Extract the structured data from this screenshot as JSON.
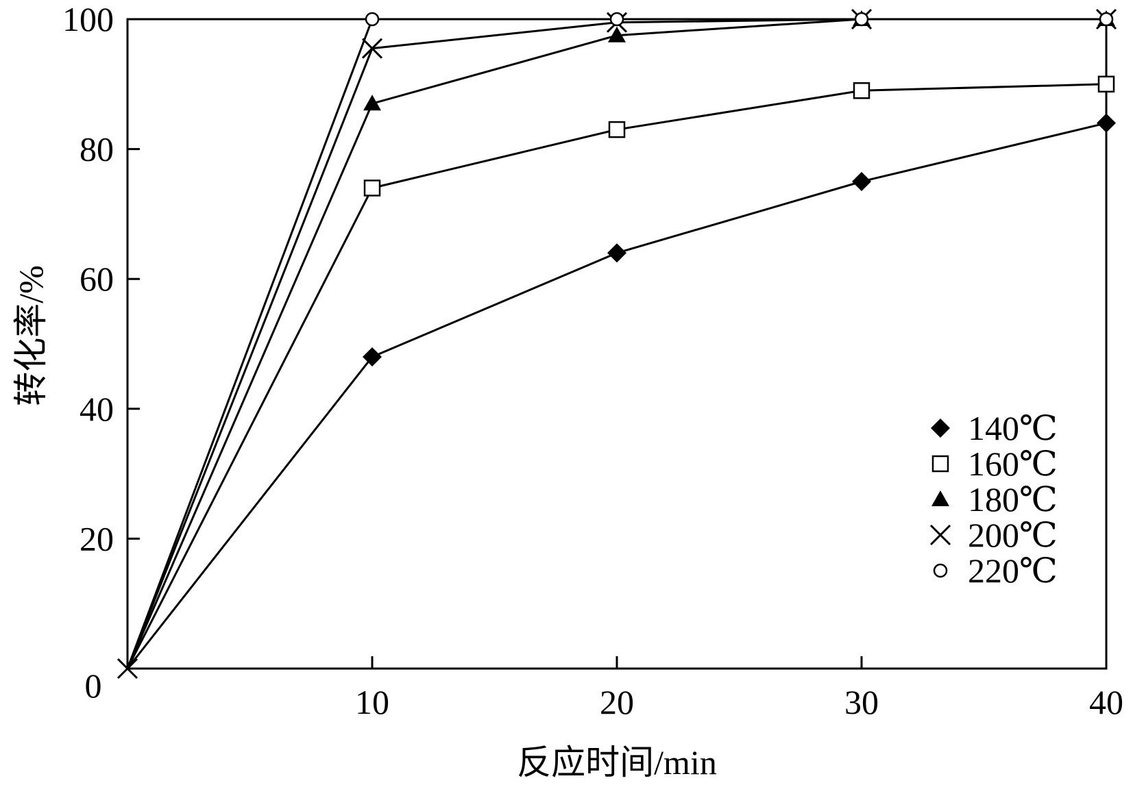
{
  "chart_data": {
    "type": "line",
    "title": "",
    "xlabel": "反应时间/min",
    "ylabel": "转化率/%",
    "xlim": [
      0,
      40
    ],
    "ylim": [
      0,
      100
    ],
    "x_ticks": [
      0,
      10,
      20,
      30,
      40
    ],
    "x_tick_labels": [
      "0",
      "10",
      "20",
      "30",
      "40"
    ],
    "y_ticks": [
      20,
      40,
      60,
      80,
      100
    ],
    "y_tick_labels": [
      "20",
      "40",
      "60",
      "80",
      "100"
    ],
    "grid": false,
    "legend_position": "right",
    "x": [
      0,
      10,
      20,
      30,
      40
    ],
    "series": [
      {
        "name": "140℃",
        "marker": "diamond-filled",
        "values": [
          0,
          48,
          64,
          75,
          84
        ]
      },
      {
        "name": "160℃",
        "marker": "square-open",
        "values": [
          0,
          74,
          83,
          89,
          90
        ]
      },
      {
        "name": "180℃",
        "marker": "triangle-filled",
        "values": [
          0,
          87,
          97.5,
          100,
          100
        ]
      },
      {
        "name": "200℃",
        "marker": "cross",
        "values": [
          0,
          95.5,
          99.5,
          100,
          100
        ]
      },
      {
        "name": "220℃",
        "marker": "circle-open",
        "values": [
          0,
          100,
          100,
          100,
          100
        ]
      }
    ],
    "colors": {
      "line": "#000000",
      "background": "#ffffff"
    }
  }
}
